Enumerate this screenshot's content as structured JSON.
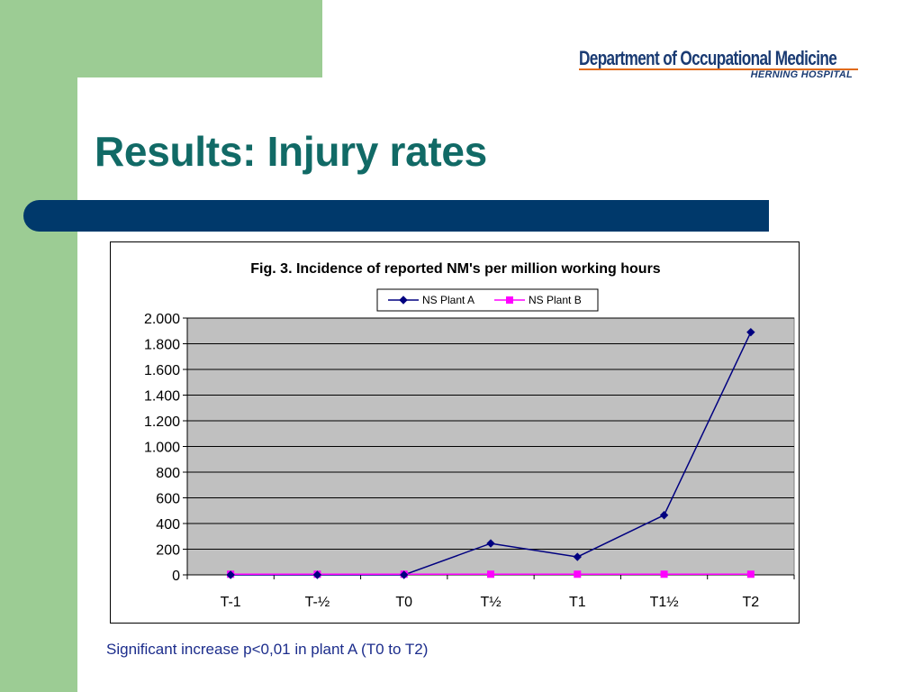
{
  "logo": {
    "name": "Department of Occupational Medicine",
    "sub": "HERNING HOSPITAL"
  },
  "slide": {
    "title": "Results: Injury rates",
    "caption": "Significant increase p<0,01 in plant A (T0 to T2)"
  },
  "colors": {
    "green": "#9ccc94",
    "title_teal": "#116a66",
    "bar_blue": "#00396b",
    "plot_bg": "#c0c0c0",
    "series_a": "#000080",
    "series_b": "#ff00ff"
  },
  "chart_data": {
    "type": "line",
    "title": "Fig. 3. Incidence of reported NM's per million working hours",
    "categories": [
      "T-1",
      "T-½",
      "T0",
      "T½",
      "T1",
      "T1½",
      "T2"
    ],
    "series": [
      {
        "name": "NS Plant A",
        "values": [
          0,
          0,
          0,
          245,
          140,
          465,
          1890
        ],
        "color": "#000080",
        "marker": "diamond"
      },
      {
        "name": "NS Plant B",
        "values": [
          5,
          5,
          5,
          5,
          5,
          5,
          5
        ],
        "color": "#ff00ff",
        "marker": "square"
      }
    ],
    "ylim": [
      0,
      2000
    ],
    "yticks": [
      0,
      200,
      400,
      600,
      800,
      1000,
      1200,
      1400,
      1600,
      1800,
      2000
    ],
    "ytick_labels": [
      "0",
      "200",
      "400",
      "600",
      "800",
      "1.000",
      "1.200",
      "1.400",
      "1.600",
      "1.800",
      "2.000"
    ],
    "grid": true,
    "legend_position": "top-center",
    "xlabel": "",
    "ylabel": ""
  }
}
